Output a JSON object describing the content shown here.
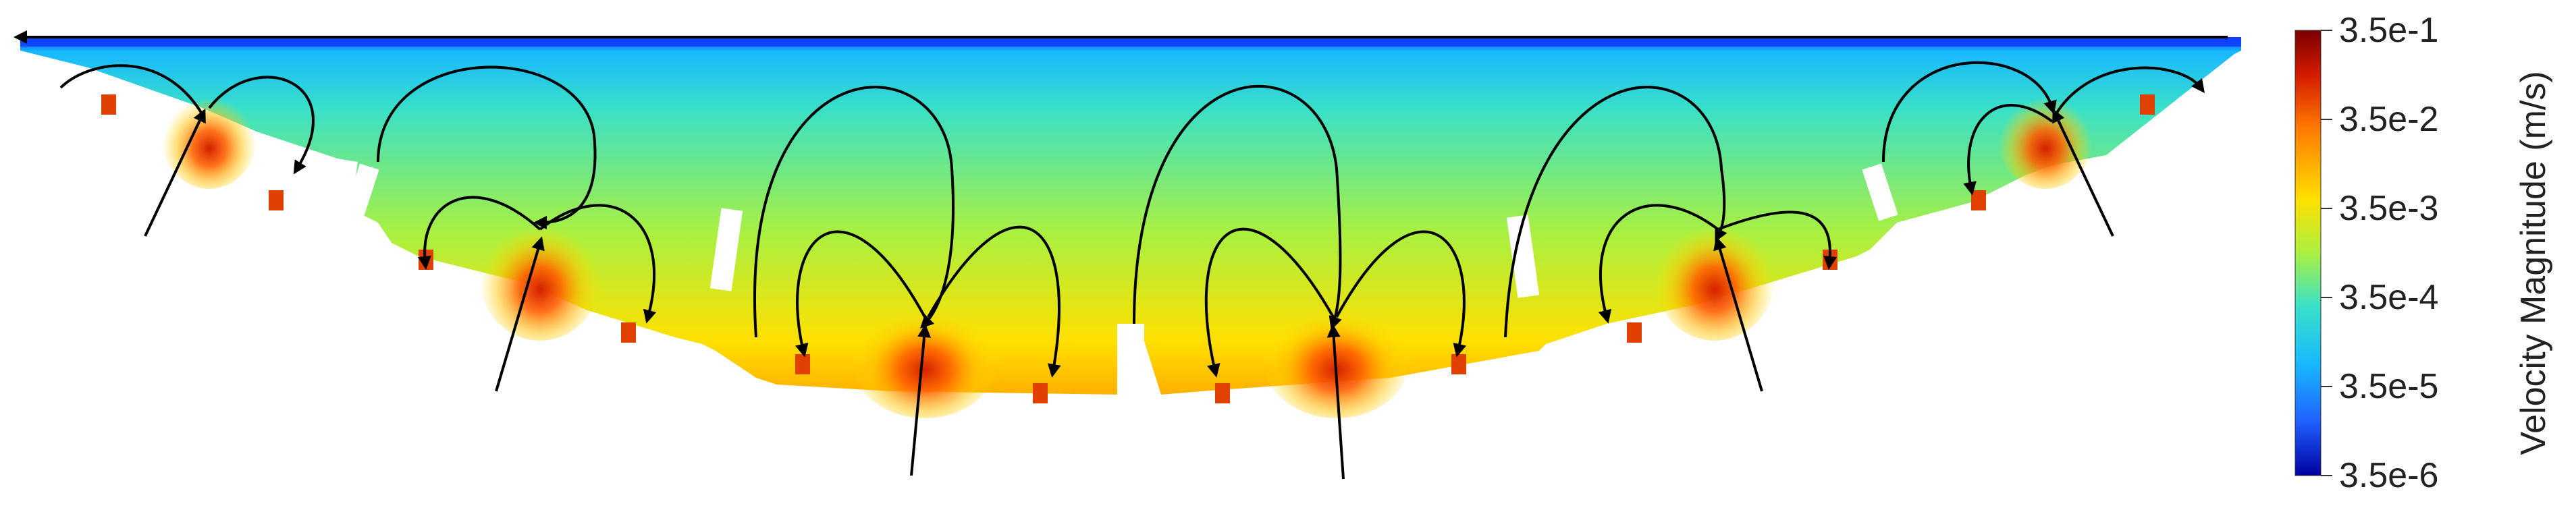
{
  "colorbar": {
    "title": "Velocity Magnitude (m/s)",
    "ticks": [
      "3.5e-1",
      "3.5e-2",
      "3.5e-3",
      "3.5e-4",
      "3.5e-5",
      "3.5e-6"
    ],
    "scale": "log",
    "range": [
      3.5e-06,
      0.35
    ]
  },
  "colormap": {
    "stops": [
      "#7a0000",
      "#d41a00",
      "#ff7a00",
      "#ffe000",
      "#aaf040",
      "#39e0c8",
      "#18b8ff",
      "#2060ff",
      "#0000a0"
    ]
  },
  "field": {
    "background_color": "#ffffff",
    "streamline_color": "#000000",
    "high_color": "#d42000",
    "mid_color": "#f5e600",
    "low_color": "#20d8e8",
    "top_color": "#1040ff"
  }
}
